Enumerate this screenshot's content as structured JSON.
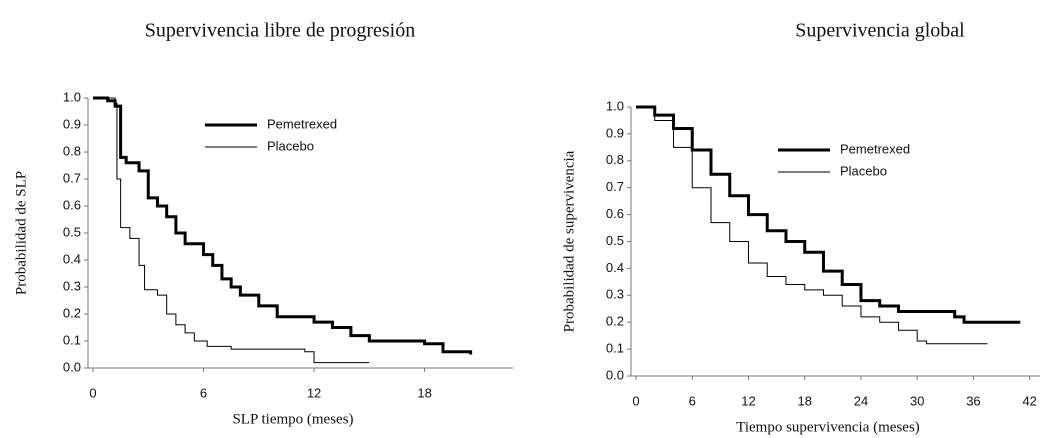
{
  "chart_data": [
    {
      "type": "step",
      "title": "Supervivencia libre de progresión",
      "x_label": "SLP tiempo (meses)",
      "y_label": "Probabilidad de SLP",
      "xlim": [
        0,
        22.8
      ],
      "xticks": [
        0,
        6,
        12,
        18
      ],
      "ylim": [
        0,
        1
      ],
      "yticks": [
        {
          "value": 0,
          "label": "0.0"
        },
        0.1,
        0.2,
        0.3,
        0.4,
        0.5,
        0.6,
        0.7,
        0.8,
        0.9,
        {
          "value": 1,
          "label": "1.0"
        }
      ],
      "series": [
        {
          "name": "Pemetrexed",
          "color": "#000000",
          "width": 3,
          "x": [
            0,
            0.8,
            1.2,
            1.5,
            1.8,
            2.5,
            3,
            3.5,
            4,
            4.5,
            5,
            6,
            6.5,
            7,
            7.5,
            8,
            9,
            10,
            11,
            12,
            13,
            14,
            15,
            16,
            18,
            19,
            20.5
          ],
          "values": [
            1.0,
            0.99,
            0.97,
            0.78,
            0.76,
            0.73,
            0.63,
            0.6,
            0.56,
            0.5,
            0.46,
            0.42,
            0.38,
            0.33,
            0.3,
            0.27,
            0.23,
            0.19,
            0.19,
            0.17,
            0.15,
            0.12,
            0.1,
            0.1,
            0.09,
            0.06,
            0.05
          ]
        },
        {
          "name": "Placebo",
          "color": "#000000",
          "width": 1,
          "x": [
            0,
            1.2,
            1.3,
            1.5,
            2,
            2.5,
            2.8,
            3.5,
            4,
            4.5,
            5,
            5.5,
            6.2,
            7.5,
            11.5,
            12,
            15
          ],
          "values": [
            1.0,
            0.98,
            0.7,
            0.52,
            0.48,
            0.38,
            0.29,
            0.27,
            0.2,
            0.16,
            0.13,
            0.1,
            0.08,
            0.07,
            0.06,
            0.02,
            0.02
          ]
        }
      ]
    },
    {
      "type": "step",
      "title": "Supervivencia global",
      "x_label": "Tiempo supervivencia (meses)",
      "y_label": "Probabilidad de supervivencia",
      "xlim": [
        0,
        43.1
      ],
      "xticks": [
        0,
        6,
        12,
        18,
        24,
        30,
        36,
        42
      ],
      "ylim": [
        0,
        1
      ],
      "yticks": [
        {
          "value": 0,
          "label": "0.0"
        },
        0.1,
        0.2,
        0.3,
        0.4,
        0.5,
        0.6,
        0.7,
        0.8,
        0.9,
        {
          "value": 1,
          "label": "1.0"
        }
      ],
      "series": [
        {
          "name": "Pemetrexed",
          "color": "#000000",
          "width": 3,
          "x": [
            0,
            2,
            4,
            6,
            8,
            10,
            12,
            14,
            16,
            18,
            20,
            22,
            24,
            26,
            28,
            30,
            34,
            35,
            41
          ],
          "values": [
            1.0,
            0.97,
            0.92,
            0.84,
            0.75,
            0.67,
            0.6,
            0.54,
            0.5,
            0.46,
            0.39,
            0.34,
            0.28,
            0.26,
            0.24,
            0.24,
            0.22,
            0.2,
            0.2
          ]
        },
        {
          "name": "Placebo",
          "color": "#000000",
          "width": 1,
          "x": [
            0,
            2,
            4,
            6,
            8,
            10,
            12,
            14,
            16,
            18,
            20,
            22,
            24,
            26,
            28,
            30,
            31,
            37.5
          ],
          "values": [
            1.0,
            0.95,
            0.85,
            0.7,
            0.57,
            0.5,
            0.42,
            0.37,
            0.34,
            0.32,
            0.3,
            0.26,
            0.22,
            0.2,
            0.17,
            0.13,
            0.12,
            0.12
          ]
        }
      ]
    }
  ]
}
